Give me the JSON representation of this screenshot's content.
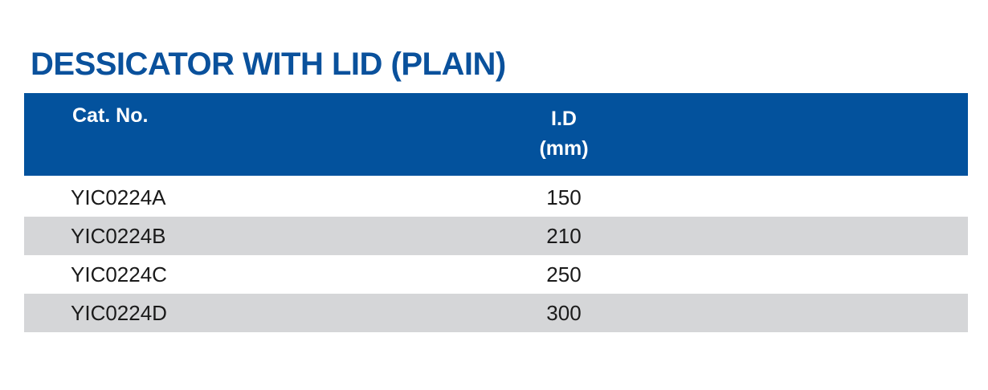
{
  "title": "DESSICATOR WITH LID (PLAIN)",
  "colors": {
    "brand_blue": "#03529d",
    "alt_row_gray": "#d5d6d8"
  },
  "table": {
    "headers": {
      "cat_no": "Cat. No.",
      "id_line1": "I.D",
      "id_line2": "(mm)"
    },
    "rows": [
      {
        "cat_no": "YIC0224A",
        "id_mm": "150"
      },
      {
        "cat_no": "YIC0224B",
        "id_mm": "210"
      },
      {
        "cat_no": "YIC0224C",
        "id_mm": "250"
      },
      {
        "cat_no": "YIC0224D",
        "id_mm": "300"
      }
    ]
  }
}
